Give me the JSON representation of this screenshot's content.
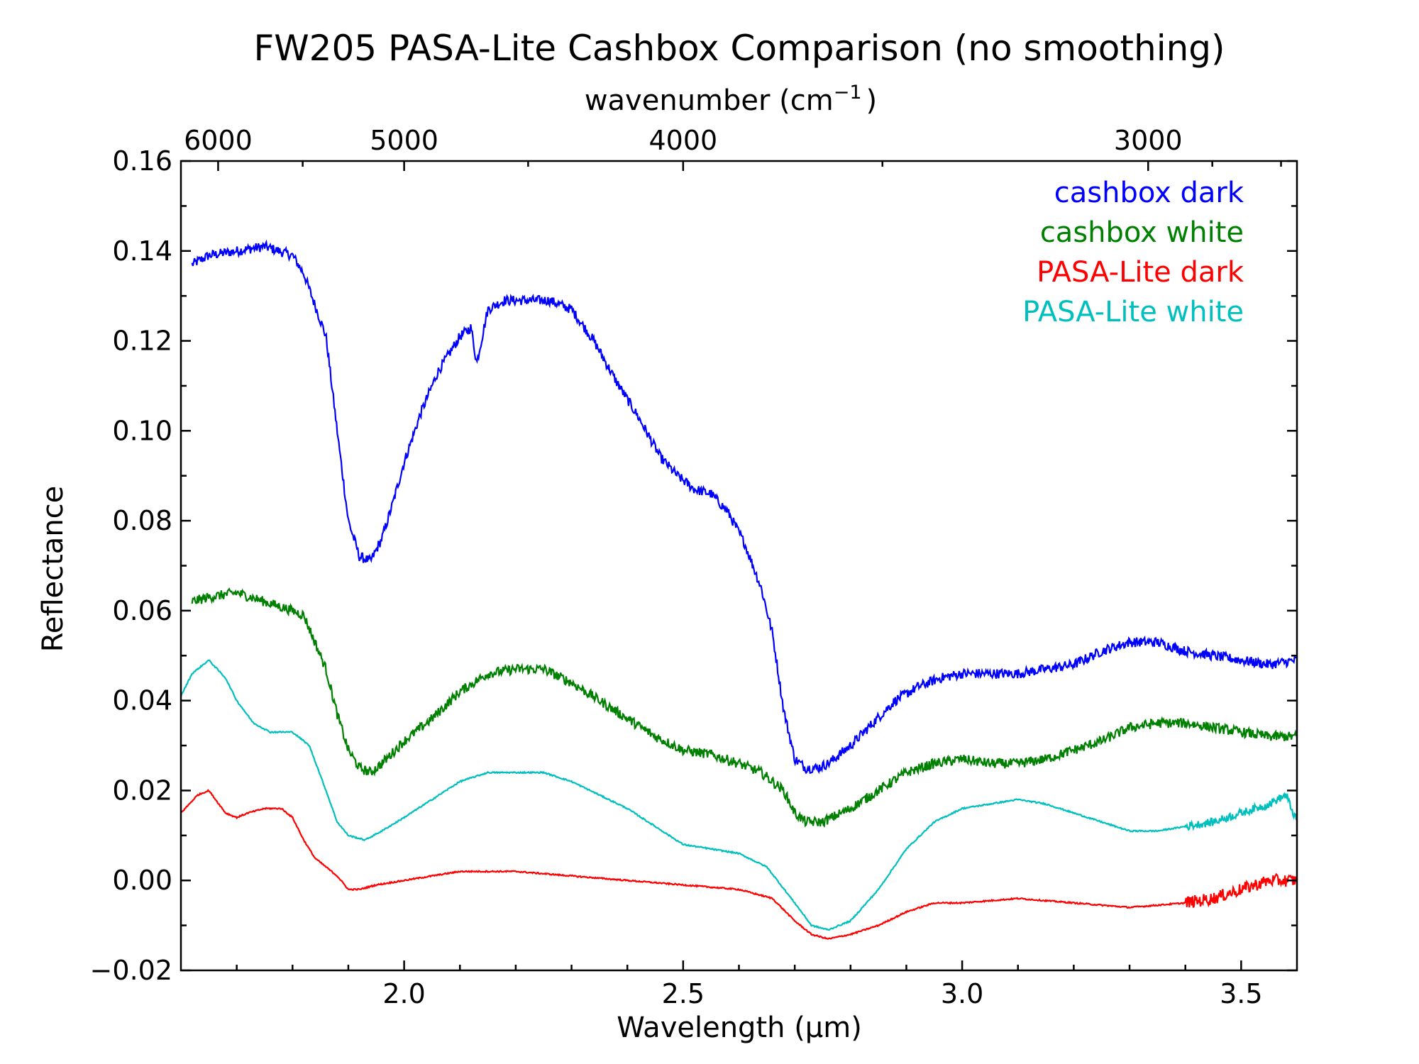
{
  "chart_data": {
    "type": "line",
    "title": "FW205 PASA-Lite Cashbox Comparison (no smoothing)",
    "xlabel": "Wavelength (μm)",
    "x2label": "wavenumber (cm",
    "x2label_exp": "−1",
    "x2label_close": ")",
    "ylabel": "Reflectance",
    "xlim": [
      1.6,
      3.6
    ],
    "ylim": [
      -0.02,
      0.16
    ],
    "xticks": [
      2.0,
      2.5,
      3.0,
      3.5
    ],
    "xtick_labels": [
      "2.0",
      "2.5",
      "3.0",
      "3.5"
    ],
    "xminor": [
      1.7,
      1.8,
      1.9,
      2.1,
      2.2,
      2.3,
      2.4,
      2.6,
      2.7,
      2.8,
      2.9,
      3.1,
      3.2,
      3.3,
      3.4
    ],
    "yticks": [
      -0.02,
      0.0,
      0.02,
      0.04,
      0.06,
      0.08,
      0.1,
      0.12,
      0.14,
      0.16
    ],
    "ytick_labels": [
      "−0.02",
      "0.00",
      "0.02",
      "0.04",
      "0.06",
      "0.08",
      "0.10",
      "0.12",
      "0.14",
      "0.16"
    ],
    "yminor": [
      -0.01,
      0.01,
      0.03,
      0.05,
      0.07,
      0.09,
      0.11,
      0.13,
      0.15
    ],
    "x2ticks": [
      6000,
      5000,
      4000,
      3000
    ],
    "x2tick_labels": [
      "6000",
      "5000",
      "4000",
      "3000"
    ],
    "x2minor": [
      5500,
      4500,
      3500,
      2900,
      2800
    ],
    "grid": false,
    "legend_placement": "top-right",
    "series": [
      {
        "name": "cashbox dark",
        "color": "#0000ff",
        "noise": 0.0022,
        "x": [
          1.62,
          1.65,
          1.7,
          1.75,
          1.8,
          1.82,
          1.84,
          1.86,
          1.88,
          1.9,
          1.92,
          1.94,
          1.96,
          1.98,
          2.0,
          2.03,
          2.06,
          2.08,
          2.1,
          2.12,
          2.13,
          2.15,
          2.18,
          2.22,
          2.26,
          2.3,
          2.34,
          2.38,
          2.42,
          2.46,
          2.49,
          2.52,
          2.55,
          2.58,
          2.61,
          2.64,
          2.66,
          2.68,
          2.7,
          2.72,
          2.74,
          2.76,
          2.8,
          2.84,
          2.88,
          2.92,
          2.96,
          3.0,
          3.05,
          3.1,
          3.15,
          3.2,
          3.25,
          3.3,
          3.35,
          3.4,
          3.45,
          3.5,
          3.55,
          3.6
        ],
        "y": [
          0.137,
          0.139,
          0.14,
          0.141,
          0.139,
          0.135,
          0.128,
          0.121,
          0.1,
          0.08,
          0.072,
          0.071,
          0.076,
          0.084,
          0.093,
          0.104,
          0.113,
          0.117,
          0.121,
          0.123,
          0.115,
          0.127,
          0.129,
          0.129,
          0.129,
          0.127,
          0.12,
          0.111,
          0.103,
          0.094,
          0.09,
          0.087,
          0.086,
          0.082,
          0.075,
          0.065,
          0.055,
          0.038,
          0.027,
          0.025,
          0.025,
          0.026,
          0.03,
          0.035,
          0.04,
          0.043,
          0.045,
          0.046,
          0.046,
          0.046,
          0.047,
          0.048,
          0.051,
          0.053,
          0.053,
          0.051,
          0.05,
          0.049,
          0.048,
          0.049
        ]
      },
      {
        "name": "cashbox white",
        "color": "#008000",
        "noise": 0.0022,
        "x": [
          1.62,
          1.65,
          1.7,
          1.75,
          1.8,
          1.82,
          1.84,
          1.86,
          1.88,
          1.9,
          1.92,
          1.94,
          1.96,
          2.0,
          2.05,
          2.1,
          2.15,
          2.2,
          2.25,
          2.3,
          2.35,
          2.4,
          2.45,
          2.5,
          2.55,
          2.6,
          2.64,
          2.68,
          2.7,
          2.72,
          2.75,
          2.8,
          2.85,
          2.9,
          2.95,
          3.0,
          3.05,
          3.1,
          3.15,
          3.2,
          3.25,
          3.3,
          3.35,
          3.4,
          3.45,
          3.5,
          3.55,
          3.6
        ],
        "y": [
          0.062,
          0.063,
          0.064,
          0.062,
          0.06,
          0.059,
          0.053,
          0.047,
          0.037,
          0.029,
          0.025,
          0.024,
          0.026,
          0.031,
          0.036,
          0.042,
          0.046,
          0.047,
          0.047,
          0.044,
          0.04,
          0.036,
          0.032,
          0.029,
          0.028,
          0.026,
          0.024,
          0.02,
          0.015,
          0.013,
          0.013,
          0.016,
          0.02,
          0.024,
          0.026,
          0.027,
          0.026,
          0.026,
          0.027,
          0.029,
          0.031,
          0.034,
          0.035,
          0.035,
          0.034,
          0.033,
          0.032,
          0.032
        ]
      },
      {
        "name": "PASA-Lite dark",
        "color": "#ff0000",
        "noise": 0.0003,
        "x": [
          1.6,
          1.63,
          1.65,
          1.68,
          1.7,
          1.72,
          1.75,
          1.78,
          1.8,
          1.82,
          1.84,
          1.86,
          1.88,
          1.9,
          1.92,
          1.95,
          2.0,
          2.1,
          2.2,
          2.3,
          2.4,
          2.5,
          2.6,
          2.66,
          2.7,
          2.73,
          2.76,
          2.8,
          2.85,
          2.9,
          2.95,
          3.0,
          3.1,
          3.2,
          3.3,
          3.4,
          3.45,
          3.5,
          3.55,
          3.6
        ],
        "y": [
          0.015,
          0.019,
          0.02,
          0.015,
          0.014,
          0.015,
          0.016,
          0.016,
          0.014,
          0.009,
          0.005,
          0.003,
          0.001,
          -0.002,
          -0.002,
          -0.001,
          0.0,
          0.002,
          0.002,
          0.001,
          0.0,
          -0.001,
          -0.002,
          -0.004,
          -0.009,
          -0.012,
          -0.013,
          -0.012,
          -0.01,
          -0.007,
          -0.005,
          -0.005,
          -0.004,
          -0.005,
          -0.006,
          -0.005,
          -0.004,
          -0.002,
          0.0,
          0.0
        ],
        "noisy_from": 3.4,
        "noise_tail": 0.0028
      },
      {
        "name": "PASA-Lite white",
        "color": "#00bfbf",
        "noise": 0.0003,
        "x": [
          1.6,
          1.62,
          1.65,
          1.68,
          1.7,
          1.73,
          1.76,
          1.8,
          1.83,
          1.86,
          1.88,
          1.9,
          1.93,
          1.96,
          2.0,
          2.05,
          2.1,
          2.15,
          2.2,
          2.25,
          2.3,
          2.35,
          2.4,
          2.45,
          2.5,
          2.55,
          2.6,
          2.65,
          2.7,
          2.73,
          2.76,
          2.8,
          2.85,
          2.9,
          2.95,
          3.0,
          3.05,
          3.1,
          3.15,
          3.2,
          3.25,
          3.3,
          3.35,
          3.4,
          3.45,
          3.5,
          3.55,
          3.58,
          3.6
        ],
        "y": [
          0.041,
          0.046,
          0.049,
          0.045,
          0.04,
          0.035,
          0.033,
          0.033,
          0.03,
          0.02,
          0.013,
          0.01,
          0.009,
          0.011,
          0.014,
          0.018,
          0.022,
          0.024,
          0.024,
          0.024,
          0.022,
          0.019,
          0.016,
          0.012,
          0.008,
          0.007,
          0.006,
          0.003,
          -0.005,
          -0.01,
          -0.011,
          -0.009,
          -0.002,
          0.007,
          0.013,
          0.016,
          0.017,
          0.018,
          0.017,
          0.015,
          0.013,
          0.011,
          0.011,
          0.012,
          0.013,
          0.015,
          0.017,
          0.019,
          0.013
        ],
        "noisy_from": 3.4,
        "noise_tail": 0.0018
      }
    ]
  }
}
